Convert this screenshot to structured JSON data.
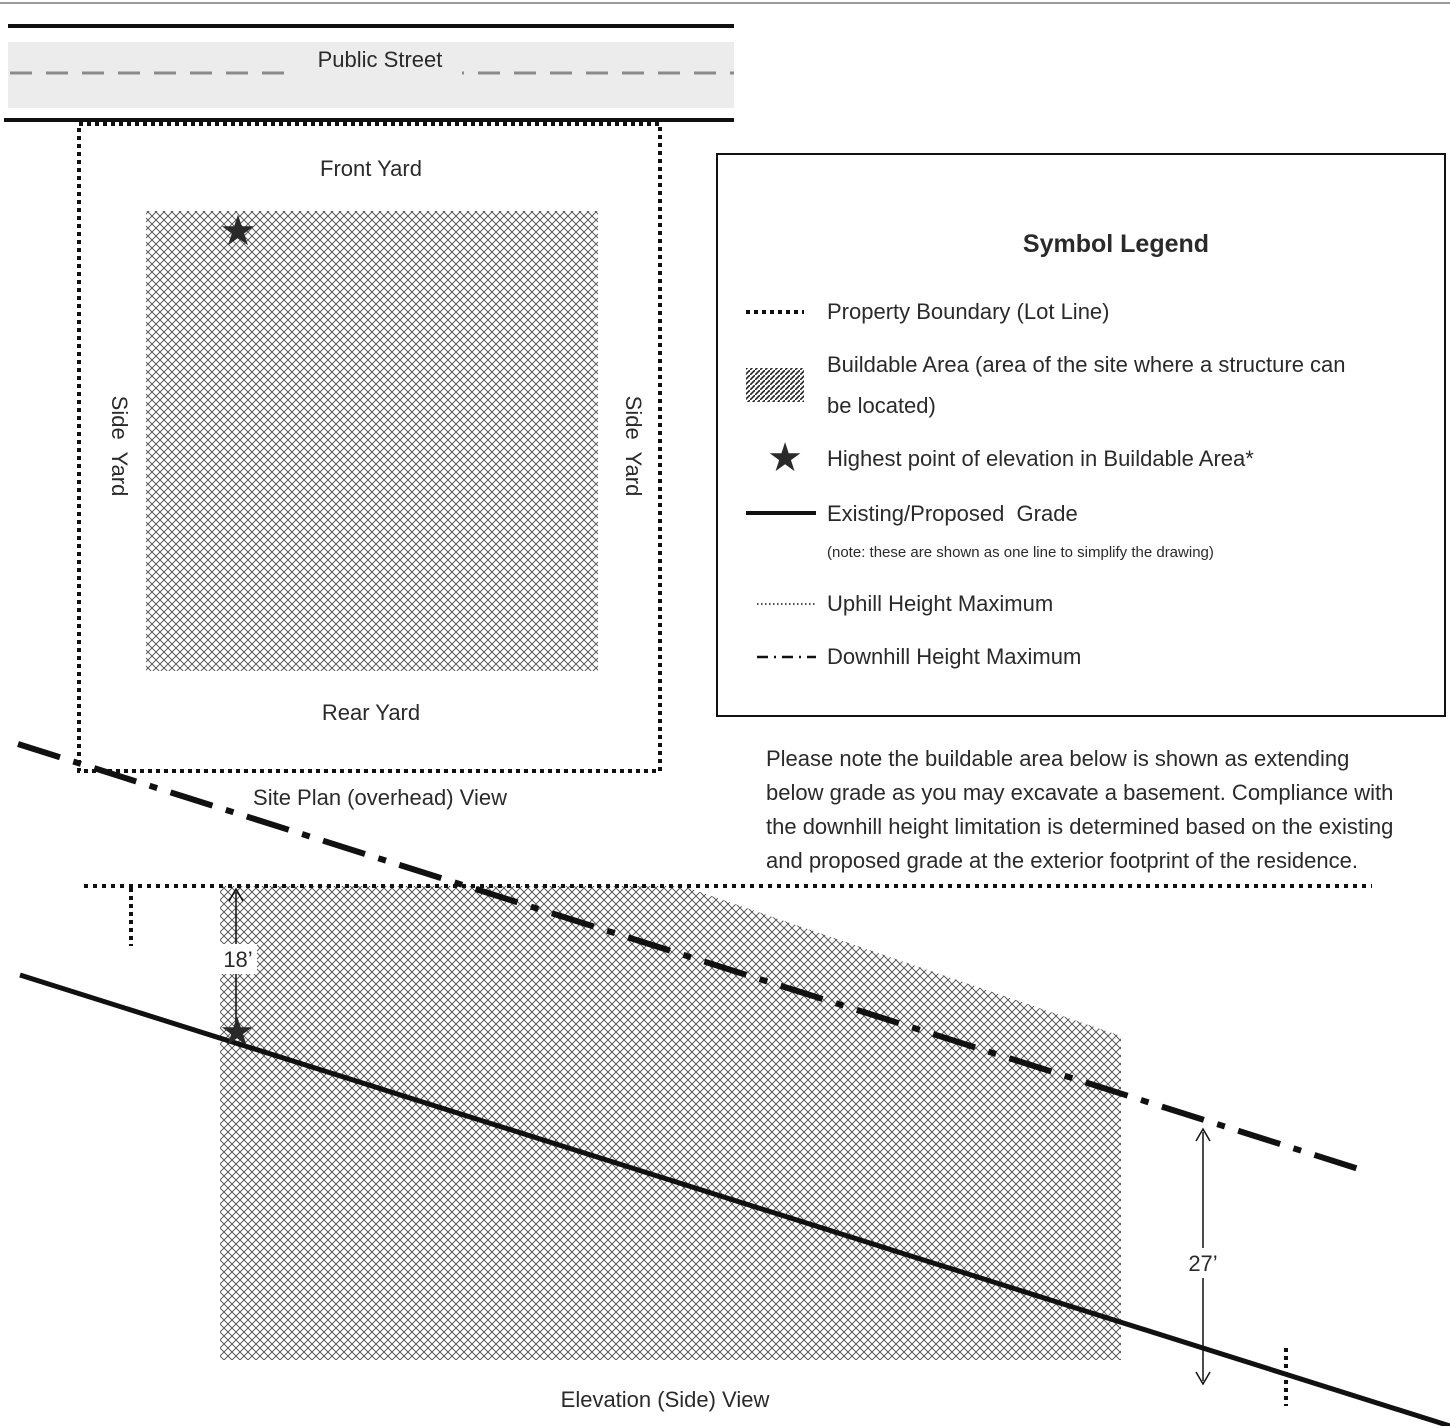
{
  "site_plan": {
    "street_label": "Public Street",
    "front_yard": "Front Yard",
    "rear_yard": "Rear Yard",
    "side_yard_left": "Side  Yard",
    "side_yard_right": "Side  Yard",
    "caption": "Site Plan (overhead) View"
  },
  "legend": {
    "title": "Symbol Legend",
    "items": [
      {
        "icon": "dotted-line-icon",
        "label": "Property Boundary (Lot Line)"
      },
      {
        "icon": "hatch-swatch-icon",
        "label_line1": "Buildable Area (area of the site where a structure can",
        "label_line2": "be located)"
      },
      {
        "icon": "star-icon",
        "label": "Highest point of elevation in Buildable Area*"
      },
      {
        "icon": "solid-line-icon",
        "label": "Existing/Proposed  Grade",
        "note": "(note: these are shown as one line to simplify the drawing)"
      },
      {
        "icon": "fine-dotted-line-icon",
        "label": "Uphill Height Maximum"
      },
      {
        "icon": "dash-dot-line-icon",
        "label": "Downhill Height Maximum"
      }
    ]
  },
  "note": "Please note the buildable area below is shown as extending below grade as you may excavate a basement. Compliance with the downhill height limitation is determined based on the existing and proposed grade at the exterior footprint of the residence.",
  "elevation": {
    "dim_uphill": "18’",
    "dim_downhill": "27’",
    "caption": "Elevation (Side) View"
  },
  "colors": {
    "ink": "#1a1a1a",
    "street_fill": "#ececec",
    "street_center": "#8a8a8a"
  }
}
